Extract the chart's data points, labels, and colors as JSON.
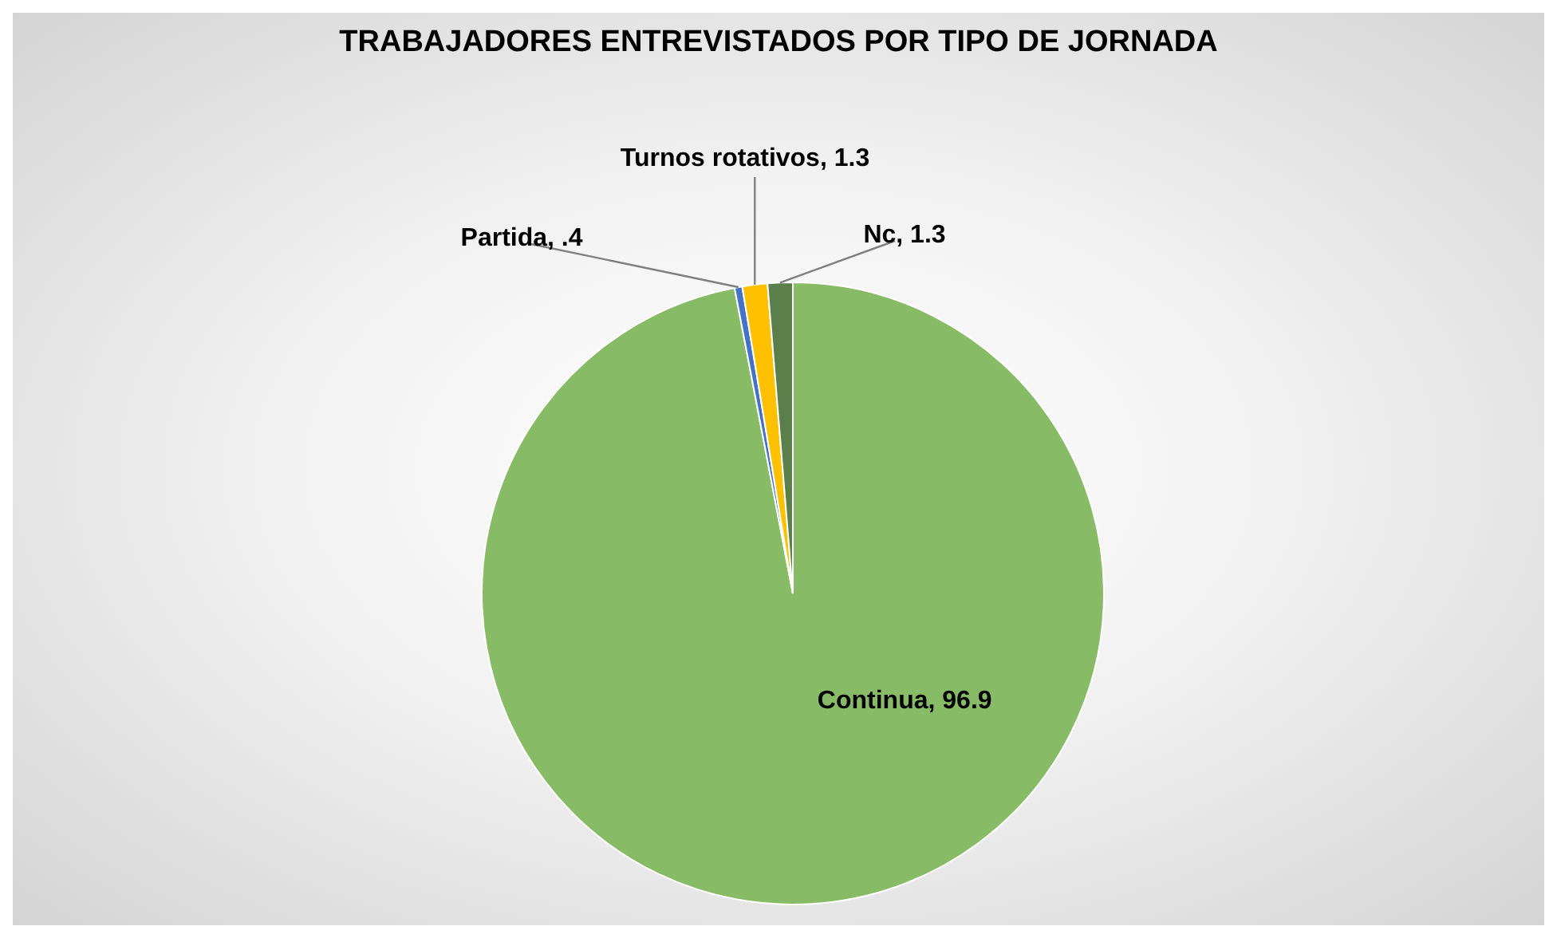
{
  "chart_data": {
    "type": "pie",
    "title": "TRABAJADORES ENTREVISTADOS POR TIPO DE JORNADA",
    "categories": [
      "Continua",
      "Partida",
      "Turnos rotativos",
      "Nc"
    ],
    "values": [
      96.9,
      0.4,
      1.3,
      1.3
    ],
    "value_labels": [
      "96.9",
      ".4",
      "1.3",
      "1.3"
    ],
    "colors": [
      "#88bb66",
      "#4472c4",
      "#ffc000",
      "#5b7f4a"
    ],
    "legend": false
  }
}
